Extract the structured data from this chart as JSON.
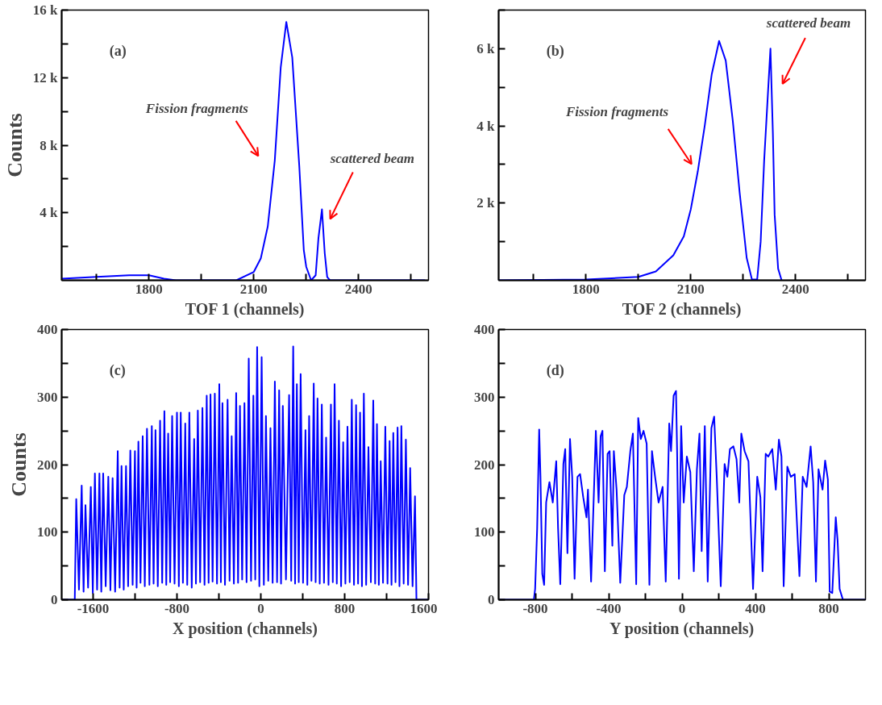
{
  "chart_data": [
    {
      "type": "line",
      "xlabel": "TOF 1 (channels)",
      "ylabel": "Counts",
      "annotations": [
        "(a)",
        "Fission fragments",
        "scattered beam"
      ],
      "xlim": [
        1550,
        2600
      ],
      "xticks": [
        {
          "value": 1650,
          "label": null
        },
        1800,
        {
          "value": 1950,
          "label": null
        },
        2100,
        {
          "value": 2250,
          "label": null
        },
        2400,
        {
          "value": 2550,
          "label": null
        }
      ],
      "ylim": [
        0,
        16000
      ],
      "yticks": [
        {
          "value": 2000,
          "label": null
        },
        {
          "value": 4000,
          "label": "4 k"
        },
        {
          "value": 6000,
          "label": null
        },
        {
          "value": 8000,
          "label": "8 k"
        },
        {
          "value": 10000,
          "label": null
        },
        {
          "value": 12000,
          "label": "12 k"
        },
        {
          "value": 14000,
          "label": null
        },
        {
          "value": 16000,
          "label": "16 k"
        }
      ],
      "series": [
        {
          "color": "#0000ff",
          "x": [
            1550,
            1650,
            1743,
            1800,
            1843,
            1877,
            2000,
            2050,
            2100,
            2120,
            2140,
            2160,
            2177,
            2193,
            2210,
            2230,
            2243,
            2250,
            2264,
            2277,
            2285,
            2295,
            2303,
            2310,
            2318,
            2590
          ],
          "values": [
            100,
            200,
            300,
            300,
            100,
            0,
            0,
            0,
            500,
            1300,
            3200,
            7100,
            12600,
            15300,
            13200,
            6800,
            1800,
            800,
            0,
            300,
            2500,
            4200,
            1600,
            200,
            0,
            0
          ]
        }
      ]
    },
    {
      "type": "line",
      "xlabel": "TOF 2 (channels)",
      "annotations": [
        "(b)",
        "Fission fragments",
        "scattered beam"
      ],
      "xlim": [
        1550,
        2600
      ],
      "xticks": [
        {
          "value": 1650,
          "label": null
        },
        1800,
        {
          "value": 1950,
          "label": null
        },
        2100,
        {
          "value": 2250,
          "label": null
        },
        2400,
        {
          "value": 2550,
          "label": null
        }
      ],
      "ylim": [
        0,
        7000
      ],
      "yticks": [
        {
          "value": 1000,
          "label": null
        },
        {
          "value": 2000,
          "label": "2 k"
        },
        {
          "value": 3000,
          "label": null
        },
        {
          "value": 4000,
          "label": "4 k"
        },
        {
          "value": 5000,
          "label": null
        },
        {
          "value": 6000,
          "label": "6 k"
        },
        {
          "value": 7000,
          "label": null
        }
      ],
      "series": [
        {
          "color": "#0000ff",
          "x": [
            1550,
            1800,
            1950,
            2000,
            2050,
            2080,
            2100,
            2120,
            2140,
            2160,
            2181,
            2200,
            2220,
            2240,
            2260,
            2275,
            2290,
            2300,
            2310,
            2328,
            2335,
            2340,
            2350,
            2360
          ],
          "values": [
            0,
            20,
            90,
            230,
            650,
            1140,
            1840,
            2820,
            4010,
            5340,
            6200,
            5690,
            4150,
            2260,
            580,
            20,
            20,
            1000,
            3100,
            6000,
            3800,
            1700,
            300,
            0
          ]
        }
      ]
    },
    {
      "type": "line",
      "xlabel": "X position (channels)",
      "ylabel": "Counts",
      "annotations": [
        "(c)"
      ],
      "xlim": [
        -1900,
        1600
      ],
      "xticks": [
        -1600,
        {
          "value": -1200,
          "label": null
        },
        -800,
        {
          "value": -400,
          "label": null
        },
        0,
        {
          "value": 400,
          "label": null
        },
        800,
        {
          "value": 1200,
          "label": null
        },
        1600
      ],
      "ylim": [
        0,
        400
      ],
      "yticks": [
        0,
        {
          "value": 50,
          "label": null
        },
        100,
        {
          "value": 150,
          "label": null
        },
        200,
        {
          "value": 250,
          "label": null
        },
        300,
        {
          "value": 350,
          "label": null
        },
        400
      ],
      "series": [
        {
          "color": "#0000ff",
          "x": [
            -1900,
            -1775,
            -1761,
            -1735,
            -1709,
            -1691,
            -1673,
            -1648,
            -1622,
            -1603,
            -1583,
            -1562,
            -1540,
            -1522,
            -1504,
            -1480,
            -1455,
            -1435,
            -1414,
            -1390,
            -1365,
            -1347,
            -1329,
            -1308,
            -1286,
            -1266,
            -1245,
            -1223,
            -1201,
            -1185,
            -1168,
            -1148,
            -1127,
            -1107,
            -1086,
            -1063,
            -1040,
            -1023,
            -1005,
            -983,
            -961,
            -941,
            -920,
            -902,
            -884,
            -865,
            -846,
            -823,
            -800,
            -782,
            -764,
            -743,
            -721,
            -702,
            -682,
            -659,
            -636,
            -619,
            -601,
            -579,
            -557,
            -537,
            -516,
            -498,
            -480,
            -460,
            -439,
            -418,
            -396,
            -381,
            -366,
            -342,
            -317,
            -298,
            -278,
            -257,
            -235,
            -217,
            -199,
            -178,
            -156,
            -136,
            -115,
            -93,
            -71,
            -53,
            -35,
            -14,
            8,
            29,
            49,
            71,
            92,
            113,
            134,
            155,
            175,
            193,
            210,
            240,
            270,
            290,
            309,
            327,
            344,
            362,
            380,
            403,
            426,
            444,
            461,
            483,
            505,
            523,
            541,
            562,
            582,
            603,
            623,
            646,
            669,
            687,
            704,
            725,
            745,
            766,
            786,
            807,
            827,
            848,
            868,
            889,
            909,
            928,
            947,
            965,
            983,
            1005,
            1027,
            1050,
            1073,
            1091,
            1108,
            1126,
            1144,
            1166,
            1188,
            1209,
            1229,
            1247,
            1264,
            1285,
            1305,
            1323,
            1341,
            1363,
            1384,
            1405,
            1425,
            1448,
            1471,
            1485,
            1600
          ],
          "values": [
            0,
            0,
            149,
            15,
            169,
            12,
            140,
            18,
            167,
            10,
            187,
            15,
            187,
            12,
            187,
            20,
            182,
            14,
            180,
            12,
            220,
            18,
            198,
            15,
            198,
            20,
            221,
            22,
            220,
            18,
            234,
            25,
            242,
            20,
            253,
            22,
            257,
            24,
            251,
            20,
            265,
            25,
            279,
            22,
            246,
            26,
            272,
            24,
            277,
            20,
            277,
            25,
            261,
            22,
            277,
            18,
            238,
            24,
            280,
            26,
            284,
            22,
            302,
            25,
            304,
            27,
            305,
            24,
            319,
            26,
            291,
            22,
            296,
            28,
            242,
            24,
            306,
            25,
            287,
            30,
            291,
            26,
            357,
            28,
            302,
            30,
            374,
            20,
            359,
            22,
            272,
            28,
            254,
            25,
            323,
            26,
            310,
            24,
            287,
            30,
            303,
            28,
            375,
            24,
            319,
            26,
            334,
            25,
            251,
            22,
            272,
            28,
            320,
            26,
            298,
            24,
            289,
            25,
            240,
            22,
            289,
            26,
            319,
            24,
            265,
            20,
            233,
            24,
            256,
            26,
            296,
            22,
            288,
            24,
            277,
            20,
            305,
            22,
            226,
            26,
            295,
            24,
            260,
            22,
            205,
            25,
            256,
            24,
            235,
            22,
            247,
            26,
            255,
            20,
            257,
            24,
            237,
            22,
            195,
            20,
            153,
            0,
            0
          ]
        }
      ]
    },
    {
      "type": "line",
      "xlabel": "Y position (channels)",
      "annotations": [
        "(d)"
      ],
      "xlim": [
        -1000,
        1000
      ],
      "xticks": [
        -800,
        {
          "value": -600,
          "label": null
        },
        -400,
        {
          "value": -200,
          "label": null
        },
        0,
        {
          "value": 200,
          "label": null
        },
        400,
        {
          "value": 600,
          "label": null
        },
        800
      ],
      "ylim": [
        0,
        400
      ],
      "yticks": [
        0,
        {
          "value": 50,
          "label": null
        },
        100,
        {
          "value": 150,
          "label": null
        },
        200,
        {
          "value": 250,
          "label": null
        },
        300,
        {
          "value": 350,
          "label": null
        },
        400
      ],
      "series": [
        {
          "color": "#0000ff",
          "x": [
            -1000,
            -808,
            -801,
            -790,
            -779,
            -772,
            -762,
            -752,
            -741,
            -723,
            -705,
            -686,
            -676,
            -664,
            -647,
            -637,
            -625,
            -611,
            -599,
            -586,
            -570,
            -556,
            -539,
            -521,
            -513,
            -496,
            -470,
            -455,
            -444,
            -434,
            -421,
            -406,
            -395,
            -380,
            -372,
            -357,
            -337,
            -315,
            -301,
            -282,
            -268,
            -250,
            -239,
            -225,
            -210,
            -193,
            -178,
            -164,
            -147,
            -128,
            -106,
            -89,
            -70,
            -60,
            -46,
            -33,
            -27,
            -17,
            -5,
            9,
            26,
            45,
            64,
            81,
            95,
            107,
            124,
            140,
            160,
            175,
            189,
            211,
            232,
            247,
            261,
            280,
            297,
            312,
            323,
            341,
            362,
            387,
            410,
            427,
            439,
            456,
            470,
            492,
            511,
            528,
            542,
            554,
            574,
            593,
            614,
            640,
            658,
            679,
            701,
            715,
            730,
            744,
            766,
            780,
            795,
            805,
            819,
            838,
            848,
            859,
            877,
            1000
          ],
          "values": [
            0,
            0,
            16,
            106,
            252,
            182,
            38,
            22,
            144,
            174,
            144,
            205,
            106,
            23,
            201,
            223,
            69,
            238,
            182,
            31,
            182,
            186,
            152,
            122,
            163,
            27,
            250,
            144,
            242,
            250,
            42,
            216,
            220,
            80,
            220,
            163,
            25,
            155,
            167,
            220,
            246,
            23,
            269,
            238,
            250,
            231,
            22,
            220,
            182,
            144,
            167,
            27,
            261,
            220,
            302,
            309,
            220,
            31,
            257,
            144,
            212,
            189,
            42,
            193,
            246,
            72,
            257,
            27,
            254,
            271,
            182,
            20,
            201,
            182,
            223,
            227,
            208,
            144,
            246,
            220,
            205,
            16,
            182,
            152,
            42,
            216,
            212,
            223,
            163,
            237,
            212,
            20,
            197,
            182,
            186,
            35,
            182,
            167,
            227,
            174,
            27,
            193,
            163,
            206,
            178,
            12,
            10,
            122,
            88,
            16,
            0,
            0
          ]
        }
      ]
    }
  ]
}
